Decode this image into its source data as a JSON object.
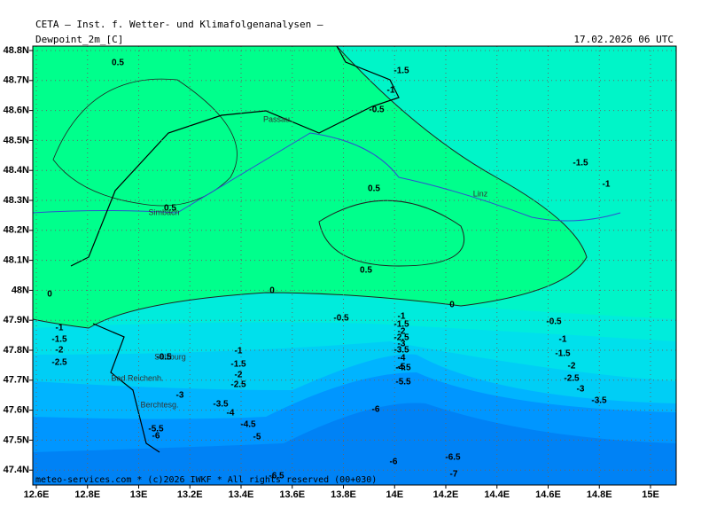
{
  "header": {
    "title": "CETA — Inst. f. Wetter- und Klimafolgenanalysen —",
    "field": "Dewpoint_2m_[C]",
    "valid": "17.02.2026 06 UTC"
  },
  "lat_labels": [
    "48.8N",
    "48.7N",
    "48.6N",
    "48.5N",
    "48.4N",
    "48.3N",
    "48.2N",
    "48.1N",
    "48N",
    "47.9N",
    "47.8N",
    "47.7N",
    "47.6N",
    "47.5N",
    "47.4N"
  ],
  "lon_labels": [
    "12.6E",
    "12.8E",
    "13E",
    "13.2E",
    "13.4E",
    "13.6E",
    "13.8E",
    "14E",
    "14.2E",
    "14.4E",
    "14.6E",
    "14.8E",
    "15E"
  ],
  "cities": [
    "Passau",
    "Simbach",
    "Linz",
    "Salzburg",
    "Bad Reichenh.",
    "Berchtesg."
  ],
  "contour_labels": [
    "0.5",
    "-1.5",
    "-1",
    "-0.5",
    "-1.5",
    "-1",
    "0.5",
    "0.5",
    "0.5",
    "0",
    "0",
    "0",
    "-0.5",
    "-1",
    "-0.5",
    "-1",
    "-1.5",
    "-2",
    "-2.5",
    "-1",
    "-1.5",
    "-2",
    "-2.5",
    "-3",
    "-3.5",
    "-1",
    "-1.5",
    "-2",
    "-2.5",
    "-3",
    "-3.5",
    "-4",
    "-4.5",
    "-5",
    "-5.5",
    "-6",
    "-0.5",
    "-1.5",
    "-2",
    "-2.5",
    "-3",
    "-3.5",
    "-4",
    "-4.5",
    "-5",
    "-5.5",
    "-6",
    "-6",
    "-6.5",
    "-7",
    "-6.5"
  ],
  "footer": "meteo-services.com * (c)2026 IWKF * All rights reserved (00+030)"
}
